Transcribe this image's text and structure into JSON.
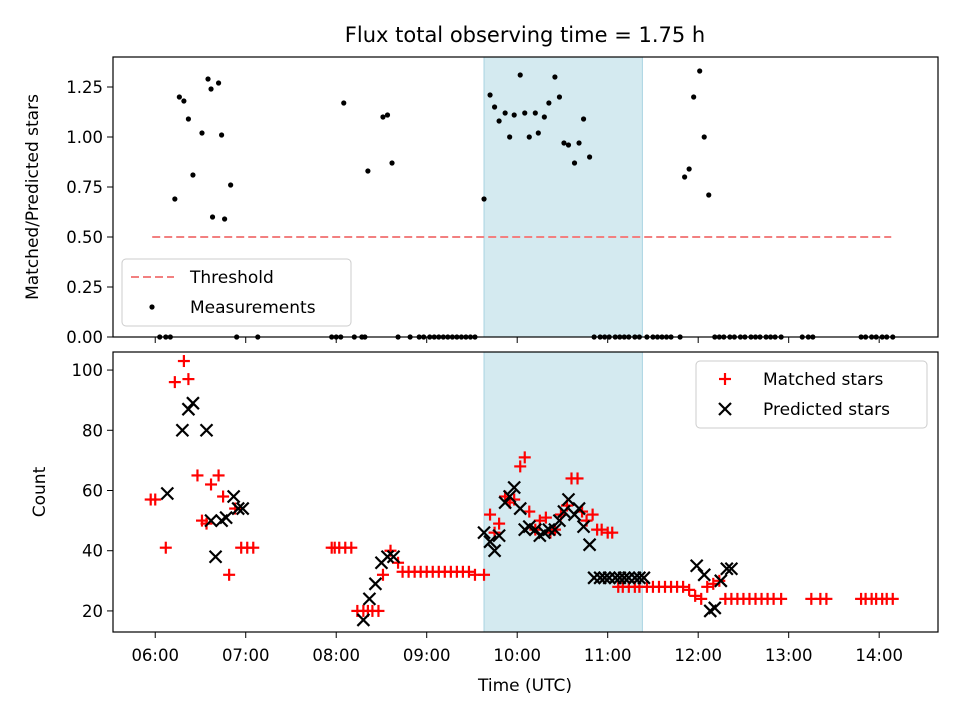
{
  "chart_data": [
    {
      "type": "scatter",
      "title": "Flux total observing time = 1.75 h",
      "xlabel": "",
      "ylabel": "Matched/Predicted stars",
      "xlim": [
        "05:32",
        "14:39"
      ],
      "ylim": [
        0,
        1.4
      ],
      "yticks": [
        "0.00",
        "0.25",
        "0.50",
        "0.75",
        "1.00",
        "1.25"
      ],
      "highlight_span": {
        "from": "09:38",
        "to": "11:23",
        "color": "#d4eaf0"
      },
      "legend": {
        "location": "lower-left",
        "entries": [
          "Threshold",
          "Measurements"
        ]
      },
      "threshold": {
        "name": "Threshold",
        "x": [
          "05:58",
          "14:08"
        ],
        "y": 0.5,
        "color": "#f28080",
        "style": "dashed"
      },
      "series": [
        {
          "name": "Measurements",
          "color": "#000000",
          "x": [
            "06:03",
            "06:07",
            "06:10",
            "06:13",
            "06:16",
            "06:19",
            "06:22",
            "06:25",
            "06:31",
            "06:35",
            "06:37",
            "06:38",
            "06:42",
            "06:44",
            "06:46",
            "06:50",
            "06:54",
            "07:08",
            "07:57",
            "08:00",
            "08:03",
            "08:05",
            "08:12",
            "08:17",
            "08:19",
            "08:21",
            "08:31",
            "08:34",
            "08:37",
            "08:41",
            "08:49",
            "08:55",
            "08:58",
            "09:02",
            "09:05",
            "09:08",
            "09:11",
            "09:14",
            "09:17",
            "09:20",
            "09:23",
            "09:26",
            "09:29",
            "09:32",
            "09:38",
            "09:42",
            "09:45",
            "09:48",
            "09:52",
            "09:55",
            "09:58",
            "10:02",
            "10:05",
            "10:08",
            "10:12",
            "10:14",
            "10:18",
            "10:21",
            "10:25",
            "10:28",
            "10:31",
            "10:34",
            "10:38",
            "10:41",
            "10:44",
            "10:48",
            "10:51",
            "10:55",
            "10:58",
            "11:01",
            "11:05",
            "11:08",
            "11:11",
            "11:14",
            "11:18",
            "11:21",
            "11:26",
            "11:30",
            "11:33",
            "11:36",
            "11:39",
            "11:42",
            "11:48",
            "11:51",
            "11:54",
            "11:57",
            "12:01",
            "12:04",
            "12:07",
            "12:11",
            "12:14",
            "12:17",
            "12:21",
            "12:24",
            "12:28",
            "12:31",
            "12:35",
            "12:38",
            "12:41",
            "12:45",
            "12:48",
            "12:51",
            "12:55",
            "13:09",
            "13:13",
            "13:16",
            "13:48",
            "13:51",
            "13:55",
            "13:58",
            "14:02",
            "14:05",
            "14:09"
          ],
          "y": [
            0,
            0,
            0,
            0.69,
            1.2,
            1.18,
            1.09,
            0.81,
            1.02,
            1.29,
            1.24,
            0.6,
            1.27,
            1.01,
            0.59,
            0.76,
            0,
            0,
            0,
            0,
            0,
            1.17,
            0,
            0,
            0,
            0.83,
            1.1,
            1.11,
            0.87,
            0,
            0,
            0,
            0,
            0,
            0,
            0,
            0,
            0,
            0,
            0,
            0,
            0,
            0,
            0,
            0.69,
            1.21,
            1.15,
            1.08,
            1.12,
            1.0,
            1.11,
            1.31,
            1.12,
            1.0,
            1.12,
            1.02,
            1.1,
            1.17,
            1.3,
            1.2,
            0.97,
            0.96,
            0.87,
            0.97,
            1.09,
            0.9,
            0,
            0,
            0,
            0,
            0,
            0,
            0,
            0,
            0,
            0,
            0,
            0,
            0,
            0,
            0,
            0,
            0,
            0.8,
            0.84,
            1.2,
            1.33,
            1.0,
            0.71,
            0,
            0,
            0,
            0,
            0,
            0,
            0,
            0,
            0,
            0,
            0,
            0,
            0,
            0,
            0,
            0,
            0,
            0,
            0,
            0,
            0,
            0,
            0,
            0
          ]
        }
      ]
    },
    {
      "type": "scatter",
      "title": "",
      "xlabel": "Time (UTC)",
      "ylabel": "Count",
      "xlim": [
        "05:32",
        "14:39"
      ],
      "ylim": [
        13,
        106
      ],
      "yticks": [
        "20",
        "40",
        "60",
        "80",
        "100"
      ],
      "xticks": [
        "06:00",
        "07:00",
        "08:00",
        "09:00",
        "10:00",
        "11:00",
        "12:00",
        "13:00",
        "14:00"
      ],
      "highlight_span": {
        "from": "09:38",
        "to": "11:23",
        "color": "#d4eaf0"
      },
      "legend": {
        "location": "top-right",
        "entries": [
          "Matched stars",
          "Predicted stars"
        ]
      },
      "series": [
        {
          "name": "Matched stars",
          "marker": "+",
          "color": "#ff0000",
          "x": [
            "05:57",
            "06:00",
            "06:07",
            "06:13",
            "06:19",
            "06:22",
            "06:28",
            "06:31",
            "06:34",
            "06:37",
            "06:42",
            "06:45",
            "06:49",
            "06:53",
            "06:57",
            "07:01",
            "07:05",
            "07:57",
            "07:59",
            "08:02",
            "08:06",
            "08:10",
            "08:14",
            "08:18",
            "08:21",
            "08:24",
            "08:28",
            "08:31",
            "08:36",
            "08:41",
            "08:44",
            "08:48",
            "08:52",
            "08:56",
            "09:00",
            "09:04",
            "09:08",
            "09:12",
            "09:16",
            "09:20",
            "09:24",
            "09:28",
            "09:32",
            "09:38",
            "09:42",
            "09:45",
            "09:48",
            "09:52",
            "09:55",
            "09:58",
            "10:02",
            "10:05",
            "10:08",
            "10:12",
            "10:15",
            "10:19",
            "10:22",
            "10:25",
            "10:29",
            "10:33",
            "10:36",
            "10:40",
            "10:43",
            "10:46",
            "10:50",
            "10:53",
            "10:56",
            "11:00",
            "11:03",
            "11:07",
            "11:10",
            "11:14",
            "11:18",
            "11:21",
            "11:26",
            "11:30",
            "11:34",
            "11:38",
            "11:42",
            "11:46",
            "11:50",
            "11:54",
            "11:58",
            "12:02",
            "12:06",
            "12:10",
            "12:14",
            "12:18",
            "12:22",
            "12:26",
            "12:30",
            "12:34",
            "12:38",
            "12:42",
            "12:46",
            "12:50",
            "12:55",
            "13:15",
            "13:21",
            "13:25",
            "13:48",
            "13:51",
            "13:55",
            "13:58",
            "14:02",
            "14:05",
            "14:09"
          ],
          "y": [
            57,
            57,
            41,
            96,
            103,
            97,
            65,
            50,
            49,
            62,
            65,
            58,
            32,
            54,
            41,
            41,
            41,
            41,
            41,
            41,
            41,
            41,
            20,
            20,
            20,
            20,
            20,
            32,
            40,
            36,
            33,
            33,
            33,
            33,
            33,
            33,
            33,
            33,
            33,
            33,
            33,
            33,
            32,
            32,
            52,
            46,
            49,
            58,
            56,
            57,
            68,
            71,
            53,
            47,
            50,
            51,
            46,
            47,
            52,
            55,
            64,
            64,
            53,
            50,
            52,
            47,
            47,
            46,
            46,
            28,
            28,
            28,
            28,
            28,
            28,
            28,
            28,
            28,
            28,
            28,
            28,
            27,
            25,
            24,
            28,
            29,
            30,
            24,
            24,
            24,
            24,
            24,
            24,
            24,
            24,
            24,
            24,
            24,
            24,
            24,
            24,
            24,
            24,
            24,
            24,
            24,
            24
          ]
        },
        {
          "name": "Predicted stars",
          "marker": "x",
          "color": "#000000",
          "x": [
            "06:08",
            "06:18",
            "06:22",
            "06:25",
            "06:34",
            "06:37",
            "06:40",
            "06:44",
            "06:47",
            "06:52",
            "06:55",
            "06:58",
            "08:18",
            "08:22",
            "08:26",
            "08:30",
            "08:34",
            "08:38",
            "09:38",
            "09:42",
            "09:45",
            "09:48",
            "09:52",
            "09:55",
            "09:58",
            "10:02",
            "10:05",
            "10:08",
            "10:12",
            "10:15",
            "10:18",
            "10:21",
            "10:25",
            "10:28",
            "10:31",
            "10:34",
            "10:38",
            "10:41",
            "10:44",
            "10:48",
            "10:51",
            "10:55",
            "10:58",
            "11:01",
            "11:05",
            "11:08",
            "11:11",
            "11:14",
            "11:18",
            "11:21",
            "11:24",
            "11:59",
            "12:04",
            "12:08",
            "12:11",
            "12:15",
            "12:19",
            "12:22"
          ],
          "y": [
            59,
            80,
            87,
            89,
            80,
            50,
            38,
            50,
            51,
            58,
            54,
            54,
            17,
            24,
            29,
            36,
            38,
            38,
            46,
            43,
            40,
            45,
            56,
            58,
            61,
            54,
            47,
            48,
            47,
            45,
            46,
            47,
            47,
            50,
            53,
            57,
            52,
            54,
            48,
            42,
            31,
            31,
            31,
            31,
            31,
            31,
            31,
            31,
            31,
            31,
            31,
            35,
            32,
            20,
            21,
            30,
            34,
            34
          ]
        }
      ]
    }
  ]
}
